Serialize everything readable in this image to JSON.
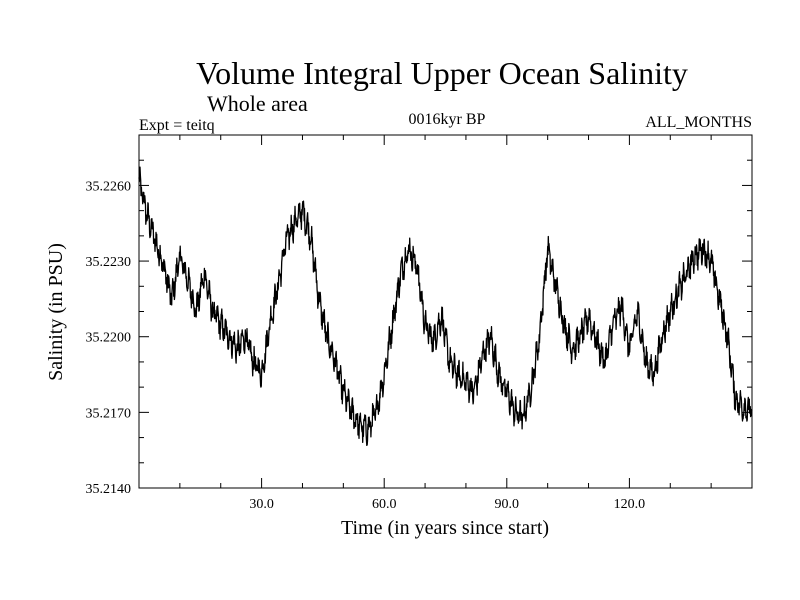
{
  "chart_data": {
    "type": "line",
    "title": "Volume Integral Upper Ocean Salinity",
    "subtitle": "Whole area",
    "experiment_label": "Expt = teitq",
    "period_label": "0016kyr BP",
    "months_label": "ALL_MONTHS",
    "xlabel": "Time (in years since start)",
    "ylabel": "Salinity (in PSU)",
    "xlim": [
      0,
      150
    ],
    "ylim": [
      35.214,
      35.228
    ],
    "x_ticks": [
      {
        "value": 30,
        "label": "30.0"
      },
      {
        "value": 60,
        "label": "60.0"
      },
      {
        "value": 90,
        "label": "90.0"
      },
      {
        "value": 120,
        "label": "120.0"
      }
    ],
    "y_ticks": [
      {
        "value": 35.214,
        "label": "35.2140"
      },
      {
        "value": 35.217,
        "label": "35.2170"
      },
      {
        "value": 35.22,
        "label": "35.2200"
      },
      {
        "value": 35.223,
        "label": "35.2230"
      },
      {
        "value": 35.226,
        "label": "35.2260"
      }
    ],
    "series": [
      {
        "name": "salinity",
        "noise_amplitude": 0.0007,
        "x": [
          0,
          2,
          4,
          6,
          8,
          10,
          12,
          14,
          16,
          18,
          20,
          22,
          24,
          26,
          28,
          30,
          32,
          34,
          36,
          38,
          40,
          42,
          44,
          46,
          48,
          50,
          52,
          54,
          56,
          58,
          60,
          62,
          64,
          66,
          68,
          70,
          72,
          74,
          76,
          78,
          80,
          82,
          84,
          86,
          88,
          90,
          92,
          94,
          96,
          98,
          100,
          102,
          104,
          106,
          108,
          110,
          112,
          114,
          116,
          118,
          120,
          122,
          124,
          126,
          128,
          130,
          132,
          134,
          136,
          138,
          140,
          142,
          144,
          146,
          148,
          150
        ],
        "values": [
          35.2262,
          35.2248,
          35.2238,
          35.2228,
          35.2215,
          35.2232,
          35.2222,
          35.221,
          35.2225,
          35.221,
          35.2205,
          35.22,
          35.2195,
          35.22,
          35.219,
          35.2185,
          35.2205,
          35.222,
          35.2238,
          35.2245,
          35.225,
          35.224,
          35.2215,
          35.22,
          35.219,
          35.2178,
          35.217,
          35.2165,
          35.2163,
          35.217,
          35.2185,
          35.2205,
          35.2225,
          35.2235,
          35.2228,
          35.2205,
          35.2198,
          35.2208,
          35.219,
          35.2185,
          35.2182,
          35.2178,
          35.2192,
          35.22,
          35.2185,
          35.2178,
          35.217,
          35.2168,
          35.218,
          35.22,
          35.2235,
          35.222,
          35.2205,
          35.2195,
          35.22,
          35.2208,
          35.2198,
          35.219,
          35.2205,
          35.2212,
          35.2195,
          35.221,
          35.219,
          35.2185,
          35.22,
          35.221,
          35.2218,
          35.2225,
          35.2232,
          35.2235,
          35.223,
          35.2215,
          35.22,
          35.2175,
          35.2172,
          35.217
        ]
      }
    ],
    "grid": false,
    "legend": "none"
  }
}
